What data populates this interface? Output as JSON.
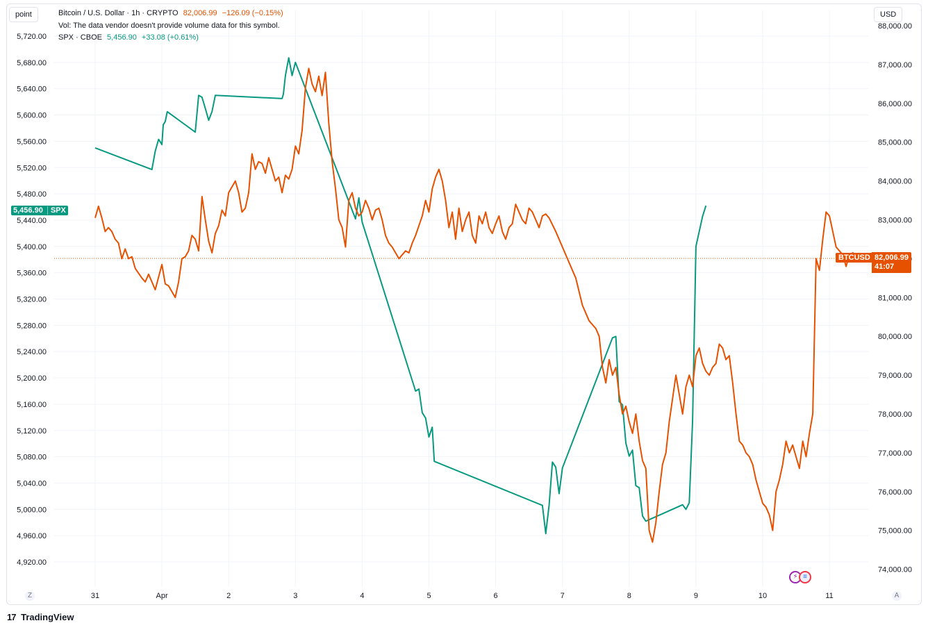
{
  "header": {
    "unit_left": "point",
    "unit_right": "USD",
    "main_series": {
      "title": "Bitcoin / U.S. Dollar · 1h · CRYPTO",
      "last": "82,006.99",
      "change": "−126.09 (−0.15%)"
    },
    "volume_note": "Vol: The data vendor doesn't provide volume data for this symbol.",
    "compare_series": {
      "title": "SPX · CBOE",
      "last": "5,456.90",
      "change": "+33.08 (+0.61%)"
    }
  },
  "tags": {
    "spx_price": "5,456.90",
    "spx_symbol": "SPX",
    "btc_symbol": "BTCUSD",
    "btc_price": "82,006.99",
    "btc_countdown": "41:07"
  },
  "corners": {
    "left": "Z",
    "right": "A"
  },
  "brand": {
    "mark": "17",
    "name": "TradingView"
  },
  "colors": {
    "btc": "#e65100",
    "spx": "#089981",
    "grid": "#f0f3fa",
    "axis_text": "#131722"
  },
  "chart_data": {
    "type": "line",
    "x_tick_labels": [
      "31",
      "Apr",
      "2",
      "3",
      "4",
      "5",
      "6",
      "7",
      "8",
      "9",
      "10",
      "11"
    ],
    "left_axis": {
      "series": "SPX",
      "range": [
        4890,
        5735
      ],
      "ticks": [
        "5,720.00",
        "5,680.00",
        "5,640.00",
        "5,600.00",
        "5,560.00",
        "5,520.00",
        "5,480.00",
        "5,440.00",
        "5,400.00",
        "5,360.00",
        "5,320.00",
        "5,280.00",
        "5,240.00",
        "5,200.00",
        "5,160.00",
        "5,120.00",
        "5,080.00",
        "5,040.00",
        "5,000.00",
        "4,960.00",
        "4,920.00"
      ]
    },
    "right_axis": {
      "series": "BTCUSD",
      "range": [
        73800,
        87800
      ],
      "ticks": [
        "88,000.00",
        "87,000.00",
        "86,000.00",
        "85,000.00",
        "84,000.00",
        "83,000.00",
        "82,000.00",
        "81,000.00",
        "80,000.00",
        "79,000.00",
        "78,000.00",
        "77,000.00",
        "76,000.00",
        "75,000.00",
        "74,000.00"
      ]
    },
    "series": [
      {
        "name": "SPX",
        "axis": "left",
        "color": "#089981",
        "points": [
          [
            30.0,
            5550
          ],
          [
            30.85,
            5517
          ],
          [
            30.9,
            5545
          ],
          [
            30.95,
            5563
          ],
          [
            31.0,
            5555
          ],
          [
            31.02,
            5585
          ],
          [
            31.05,
            5590
          ],
          [
            31.08,
            5605
          ],
          [
            31.5,
            5574
          ],
          [
            31.55,
            5630
          ],
          [
            31.6,
            5627
          ],
          [
            31.65,
            5610
          ],
          [
            31.7,
            5592
          ],
          [
            31.75,
            5605
          ],
          [
            31.8,
            5630
          ],
          [
            32.8,
            5625
          ],
          [
            32.82,
            5632
          ],
          [
            32.85,
            5660
          ],
          [
            32.9,
            5687
          ],
          [
            32.95,
            5660
          ],
          [
            33.0,
            5680
          ],
          [
            33.9,
            5442
          ],
          [
            33.95,
            5474
          ],
          [
            34.0,
            5437
          ],
          [
            34.8,
            5180
          ],
          [
            34.85,
            5183
          ],
          [
            34.9,
            5147
          ],
          [
            34.95,
            5139
          ],
          [
            35.0,
            5110
          ],
          [
            35.05,
            5125
          ],
          [
            35.08,
            5073
          ],
          [
            36.7,
            5006
          ],
          [
            36.75,
            4963
          ],
          [
            36.8,
            5006
          ],
          [
            36.85,
            5072
          ],
          [
            36.9,
            5064
          ],
          [
            36.95,
            5024
          ],
          [
            37.0,
            5063
          ],
          [
            37.75,
            5261
          ],
          [
            37.8,
            5263
          ],
          [
            37.85,
            5164
          ],
          [
            37.9,
            5159
          ],
          [
            37.95,
            5101
          ],
          [
            38.0,
            5081
          ],
          [
            38.05,
            5090
          ],
          [
            38.1,
            5036
          ],
          [
            38.15,
            5033
          ],
          [
            38.2,
            4990
          ],
          [
            38.25,
            4982
          ],
          [
            38.8,
            5007
          ],
          [
            38.85,
            5000
          ],
          [
            38.9,
            5010
          ],
          [
            38.95,
            5135
          ],
          [
            39.0,
            5400
          ],
          [
            39.1,
            5446
          ],
          [
            39.15,
            5462
          ]
        ]
      },
      {
        "name": "BTCUSD",
        "axis": "right",
        "color": "#e65100",
        "points": [
          [
            30.0,
            83050
          ],
          [
            30.05,
            83350
          ],
          [
            30.1,
            83050
          ],
          [
            30.15,
            82700
          ],
          [
            30.2,
            82800
          ],
          [
            30.25,
            82700
          ],
          [
            30.3,
            82500
          ],
          [
            30.35,
            82400
          ],
          [
            30.4,
            82000
          ],
          [
            30.45,
            82250
          ],
          [
            30.5,
            82000
          ],
          [
            30.55,
            82050
          ],
          [
            30.6,
            81750
          ],
          [
            30.7,
            81500
          ],
          [
            30.75,
            81400
          ],
          [
            30.8,
            81600
          ],
          [
            30.85,
            81400
          ],
          [
            30.9,
            81200
          ],
          [
            31.0,
            81850
          ],
          [
            31.05,
            81350
          ],
          [
            31.1,
            81300
          ],
          [
            31.15,
            81150
          ],
          [
            31.2,
            81000
          ],
          [
            31.25,
            81400
          ],
          [
            31.3,
            82000
          ],
          [
            31.35,
            82050
          ],
          [
            31.4,
            82200
          ],
          [
            31.45,
            82600
          ],
          [
            31.5,
            82500
          ],
          [
            31.55,
            82200
          ],
          [
            31.6,
            83600
          ],
          [
            31.65,
            83000
          ],
          [
            31.7,
            82450
          ],
          [
            31.75,
            82150
          ],
          [
            31.8,
            82650
          ],
          [
            31.85,
            82850
          ],
          [
            31.9,
            83250
          ],
          [
            31.95,
            83100
          ],
          [
            32.0,
            83700
          ],
          [
            32.1,
            84000
          ],
          [
            32.15,
            83700
          ],
          [
            32.2,
            83200
          ],
          [
            32.25,
            83300
          ],
          [
            32.3,
            83700
          ],
          [
            32.35,
            84700
          ],
          [
            32.4,
            84300
          ],
          [
            32.45,
            84500
          ],
          [
            32.5,
            84450
          ],
          [
            32.55,
            84200
          ],
          [
            32.6,
            84600
          ],
          [
            32.65,
            84300
          ],
          [
            32.7,
            84000
          ],
          [
            32.75,
            84100
          ],
          [
            32.8,
            83700
          ],
          [
            32.85,
            84150
          ],
          [
            32.9,
            84050
          ],
          [
            32.95,
            84300
          ],
          [
            33.0,
            84900
          ],
          [
            33.05,
            84700
          ],
          [
            33.1,
            85300
          ],
          [
            33.15,
            86400
          ],
          [
            33.2,
            86900
          ],
          [
            33.25,
            86500
          ],
          [
            33.3,
            86300
          ],
          [
            33.35,
            86700
          ],
          [
            33.4,
            86200
          ],
          [
            33.45,
            86800
          ],
          [
            33.5,
            85500
          ],
          [
            33.55,
            84500
          ],
          [
            33.6,
            83800
          ],
          [
            33.65,
            83000
          ],
          [
            33.7,
            82800
          ],
          [
            33.75,
            82300
          ],
          [
            33.8,
            83500
          ],
          [
            33.85,
            83700
          ],
          [
            33.9,
            83300
          ],
          [
            33.95,
            83100
          ],
          [
            34.0,
            83200
          ],
          [
            34.05,
            83500
          ],
          [
            34.1,
            83300
          ],
          [
            34.15,
            83000
          ],
          [
            34.2,
            83250
          ],
          [
            34.25,
            83300
          ],
          [
            34.3,
            83000
          ],
          [
            34.35,
            82600
          ],
          [
            34.4,
            82400
          ],
          [
            34.45,
            82300
          ],
          [
            34.5,
            82150
          ],
          [
            34.55,
            82000
          ],
          [
            34.6,
            82100
          ],
          [
            34.65,
            82200
          ],
          [
            34.7,
            82150
          ],
          [
            34.75,
            82400
          ],
          [
            34.8,
            82600
          ],
          [
            34.85,
            82850
          ],
          [
            34.9,
            83100
          ],
          [
            34.95,
            83500
          ],
          [
            35.0,
            83200
          ],
          [
            35.05,
            83800
          ],
          [
            35.1,
            84100
          ],
          [
            35.15,
            84300
          ],
          [
            35.2,
            84000
          ],
          [
            35.25,
            83500
          ],
          [
            35.3,
            82800
          ],
          [
            35.35,
            83200
          ],
          [
            35.4,
            82500
          ],
          [
            35.45,
            83300
          ],
          [
            35.5,
            82700
          ],
          [
            35.55,
            83000
          ],
          [
            35.6,
            83200
          ],
          [
            35.65,
            82600
          ],
          [
            35.7,
            82400
          ],
          [
            35.75,
            83100
          ],
          [
            35.8,
            82900
          ],
          [
            35.85,
            83200
          ],
          [
            35.9,
            82800
          ],
          [
            35.95,
            82650
          ],
          [
            36.0,
            82900
          ],
          [
            36.05,
            83100
          ],
          [
            36.1,
            82700
          ],
          [
            36.15,
            82500
          ],
          [
            36.2,
            82800
          ],
          [
            36.25,
            82900
          ],
          [
            36.3,
            83400
          ],
          [
            36.35,
            83200
          ],
          [
            36.4,
            83000
          ],
          [
            36.45,
            82900
          ],
          [
            36.5,
            83300
          ],
          [
            36.55,
            83200
          ],
          [
            36.6,
            83000
          ],
          [
            36.65,
            82800
          ],
          [
            36.7,
            83100
          ],
          [
            36.75,
            83150
          ],
          [
            36.8,
            83050
          ],
          [
            36.9,
            82700
          ],
          [
            37.0,
            82300
          ],
          [
            37.1,
            81900
          ],
          [
            37.2,
            81500
          ],
          [
            37.3,
            80800
          ],
          [
            37.4,
            80400
          ],
          [
            37.5,
            80200
          ],
          [
            37.55,
            80000
          ],
          [
            37.6,
            79200
          ],
          [
            37.65,
            78800
          ],
          [
            37.7,
            79400
          ],
          [
            37.75,
            79000
          ],
          [
            37.8,
            79200
          ],
          [
            37.85,
            78500
          ],
          [
            37.9,
            78000
          ],
          [
            37.95,
            78200
          ],
          [
            38.0,
            77800
          ],
          [
            38.05,
            77500
          ],
          [
            38.1,
            78000
          ],
          [
            38.15,
            77300
          ],
          [
            38.2,
            76800
          ],
          [
            38.25,
            76600
          ],
          [
            38.3,
            75000
          ],
          [
            38.35,
            74700
          ],
          [
            38.4,
            75200
          ],
          [
            38.45,
            76000
          ],
          [
            38.5,
            76700
          ],
          [
            38.55,
            77000
          ],
          [
            38.6,
            77800
          ],
          [
            38.65,
            78400
          ],
          [
            38.7,
            79000
          ],
          [
            38.75,
            78500
          ],
          [
            38.8,
            78000
          ],
          [
            38.85,
            78700
          ],
          [
            38.9,
            79000
          ],
          [
            38.95,
            78700
          ],
          [
            39.0,
            79500
          ]
        ]
      }
    ]
  }
}
